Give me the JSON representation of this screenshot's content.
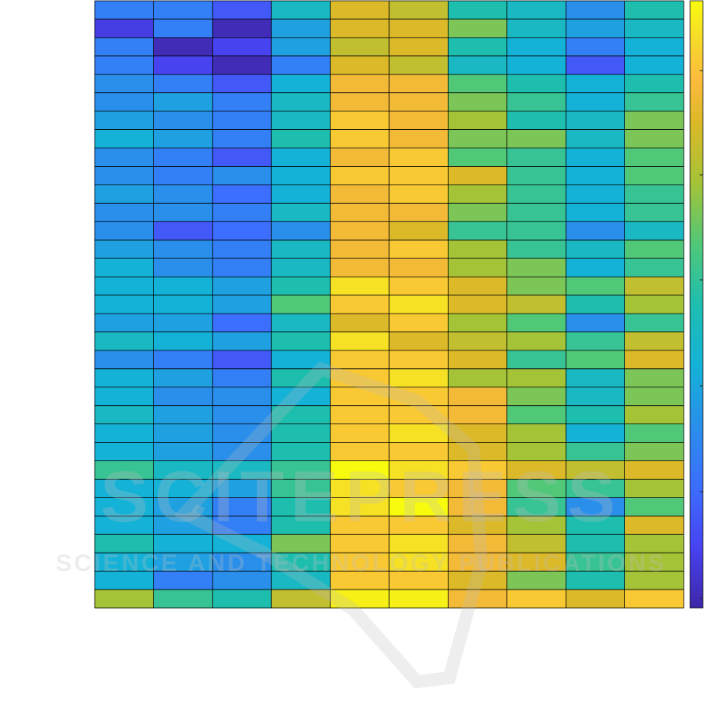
{
  "chart_data": {
    "type": "heatmap",
    "title": "",
    "xlabel": "",
    "ylabel": "",
    "colormap": "parula",
    "value_range": [
      0,
      1
    ],
    "n_rows": 33,
    "n_cols": 10,
    "colorbar": {
      "position": "right",
      "tick_count": 6,
      "tick_labels": []
    },
    "values": [
      [
        0.25,
        0.25,
        0.15,
        0.45,
        0.8,
        0.75,
        0.5,
        0.45,
        0.3,
        0.5
      ],
      [
        0.08,
        0.25,
        0.02,
        0.35,
        0.8,
        0.8,
        0.65,
        0.45,
        0.35,
        0.45
      ],
      [
        0.25,
        0.02,
        0.1,
        0.35,
        0.75,
        0.8,
        0.5,
        0.4,
        0.25,
        0.4
      ],
      [
        0.25,
        0.1,
        0.02,
        0.25,
        0.8,
        0.75,
        0.45,
        0.4,
        0.15,
        0.4
      ],
      [
        0.3,
        0.25,
        0.15,
        0.4,
        0.85,
        0.85,
        0.6,
        0.5,
        0.4,
        0.5
      ],
      [
        0.3,
        0.35,
        0.25,
        0.45,
        0.85,
        0.85,
        0.65,
        0.55,
        0.4,
        0.55
      ],
      [
        0.35,
        0.3,
        0.25,
        0.45,
        0.9,
        0.85,
        0.7,
        0.5,
        0.45,
        0.65
      ],
      [
        0.4,
        0.35,
        0.25,
        0.5,
        0.9,
        0.85,
        0.65,
        0.65,
        0.45,
        0.65
      ],
      [
        0.3,
        0.25,
        0.15,
        0.4,
        0.85,
        0.9,
        0.6,
        0.55,
        0.4,
        0.6
      ],
      [
        0.3,
        0.25,
        0.3,
        0.4,
        0.9,
        0.9,
        0.8,
        0.55,
        0.4,
        0.6
      ],
      [
        0.35,
        0.3,
        0.2,
        0.4,
        0.85,
        0.9,
        0.7,
        0.55,
        0.4,
        0.55
      ],
      [
        0.3,
        0.3,
        0.25,
        0.45,
        0.85,
        0.85,
        0.65,
        0.55,
        0.4,
        0.55
      ],
      [
        0.3,
        0.15,
        0.2,
        0.3,
        0.85,
        0.8,
        0.55,
        0.55,
        0.3,
        0.45
      ],
      [
        0.35,
        0.3,
        0.25,
        0.45,
        0.85,
        0.9,
        0.7,
        0.55,
        0.45,
        0.6
      ],
      [
        0.4,
        0.3,
        0.25,
        0.45,
        0.85,
        0.85,
        0.7,
        0.65,
        0.4,
        0.55
      ],
      [
        0.4,
        0.4,
        0.35,
        0.5,
        0.95,
        0.9,
        0.8,
        0.65,
        0.6,
        0.75
      ],
      [
        0.4,
        0.4,
        0.35,
        0.6,
        0.9,
        0.95,
        0.8,
        0.75,
        0.5,
        0.7
      ],
      [
        0.35,
        0.35,
        0.2,
        0.45,
        0.8,
        0.9,
        0.7,
        0.6,
        0.3,
        0.55
      ],
      [
        0.45,
        0.4,
        0.35,
        0.5,
        0.95,
        0.8,
        0.75,
        0.7,
        0.55,
        0.75
      ],
      [
        0.3,
        0.25,
        0.15,
        0.4,
        0.9,
        0.9,
        0.8,
        0.55,
        0.6,
        0.8
      ],
      [
        0.4,
        0.35,
        0.25,
        0.5,
        0.9,
        0.95,
        0.7,
        0.7,
        0.45,
        0.65
      ],
      [
        0.4,
        0.3,
        0.3,
        0.4,
        0.9,
        0.9,
        0.85,
        0.65,
        0.45,
        0.65
      ],
      [
        0.45,
        0.35,
        0.3,
        0.5,
        0.9,
        0.9,
        0.85,
        0.6,
        0.5,
        0.7
      ],
      [
        0.4,
        0.35,
        0.3,
        0.5,
        0.9,
        0.95,
        0.8,
        0.7,
        0.4,
        0.6
      ],
      [
        0.4,
        0.35,
        0.3,
        0.5,
        0.9,
        0.9,
        0.8,
        0.7,
        0.55,
        0.65
      ],
      [
        0.55,
        0.45,
        0.45,
        0.55,
        1.0,
        0.95,
        0.9,
        0.8,
        0.75,
        0.8
      ],
      [
        0.4,
        0.4,
        0.35,
        0.55,
        0.95,
        0.9,
        0.85,
        0.6,
        0.55,
        0.7
      ],
      [
        0.4,
        0.35,
        0.25,
        0.5,
        0.95,
        1.0,
        0.85,
        0.55,
        0.3,
        0.6
      ],
      [
        0.4,
        0.35,
        0.25,
        0.5,
        0.9,
        0.9,
        0.8,
        0.7,
        0.5,
        0.8
      ],
      [
        0.5,
        0.4,
        0.4,
        0.65,
        0.9,
        0.95,
        0.85,
        0.75,
        0.5,
        0.7
      ],
      [
        0.4,
        0.35,
        0.3,
        0.5,
        0.9,
        0.95,
        0.85,
        0.8,
        0.55,
        0.7
      ],
      [
        0.4,
        0.25,
        0.3,
        0.45,
        0.9,
        0.9,
        0.8,
        0.65,
        0.5,
        0.7
      ],
      [
        0.7,
        0.55,
        0.5,
        0.75,
        0.98,
        0.98,
        0.85,
        0.9,
        0.8,
        0.9
      ]
    ]
  }
}
